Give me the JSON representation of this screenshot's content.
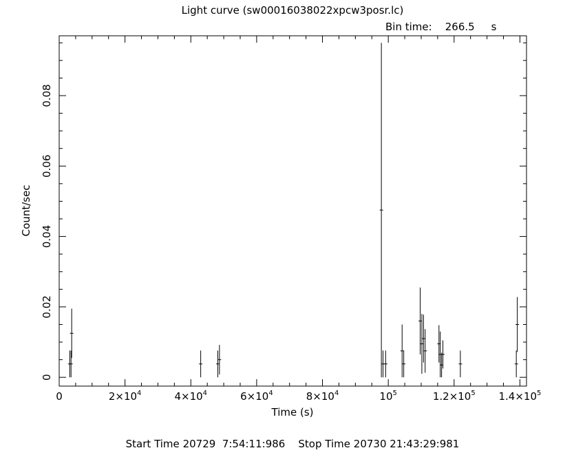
{
  "chart_data": {
    "type": "scatter",
    "title": "Light curve (sw00016038022xpcw3posr.lc)",
    "bin_time_label": "Bin time:",
    "bin_time_value": "266.5",
    "bin_time_unit": "s",
    "xlabel": "Time (s)",
    "ylabel": "Count/sec",
    "xlim": [
      0,
      142000
    ],
    "ylim": [
      -0.0025,
      0.097
    ],
    "x_ticks": [
      {
        "value": 0,
        "mant": "0",
        "exp": ""
      },
      {
        "value": 20000,
        "mant": "2×10",
        "exp": "4"
      },
      {
        "value": 40000,
        "mant": "4×10",
        "exp": "4"
      },
      {
        "value": 60000,
        "mant": "6×10",
        "exp": "4"
      },
      {
        "value": 80000,
        "mant": "8×10",
        "exp": "4"
      },
      {
        "value": 100000,
        "mant": "10",
        "exp": "5"
      },
      {
        "value": 120000,
        "mant": "1.2×10",
        "exp": "5"
      },
      {
        "value": 140000,
        "mant": "1.4×10",
        "exp": "5"
      }
    ],
    "y_ticks": [
      {
        "value": 0,
        "label": "0"
      },
      {
        "value": 0.02,
        "label": "0.02"
      },
      {
        "value": 0.04,
        "label": "0.04"
      },
      {
        "value": 0.06,
        "label": "0.06"
      },
      {
        "value": 0.08,
        "label": "0.08"
      }
    ],
    "points": [
      {
        "x": 3200,
        "y": 0.0038,
        "err": 0.0038
      },
      {
        "x": 3600,
        "y": 0.0038,
        "err": 0.0038
      },
      {
        "x": 3800,
        "y": 0.0125,
        "err": 0.007
      },
      {
        "x": 43000,
        "y": 0.0038,
        "err": 0.0038
      },
      {
        "x": 48200,
        "y": 0.0038,
        "err": 0.0038
      },
      {
        "x": 48700,
        "y": 0.005,
        "err": 0.0042
      },
      {
        "x": 97900,
        "y": 0.0475,
        "err": 0.0475
      },
      {
        "x": 98400,
        "y": 0.0038,
        "err": 0.0038
      },
      {
        "x": 99200,
        "y": 0.0038,
        "err": 0.0038
      },
      {
        "x": 104200,
        "y": 0.0075,
        "err": 0.0075
      },
      {
        "x": 104700,
        "y": 0.0038,
        "err": 0.0038
      },
      {
        "x": 109700,
        "y": 0.016,
        "err": 0.0095
      },
      {
        "x": 110200,
        "y": 0.0095,
        "err": 0.0085
      },
      {
        "x": 110700,
        "y": 0.011,
        "err": 0.0068
      },
      {
        "x": 111200,
        "y": 0.0075,
        "err": 0.0062
      },
      {
        "x": 115400,
        "y": 0.0095,
        "err": 0.0053
      },
      {
        "x": 115800,
        "y": 0.0065,
        "err": 0.0065
      },
      {
        "x": 116200,
        "y": 0.0035,
        "err": 0.0035
      },
      {
        "x": 116600,
        "y": 0.0065,
        "err": 0.004
      },
      {
        "x": 121900,
        "y": 0.0038,
        "err": 0.0038
      },
      {
        "x": 138900,
        "y": 0.0038,
        "err": 0.0038
      },
      {
        "x": 139200,
        "y": 0.015,
        "err": 0.0078
      }
    ]
  },
  "footer": {
    "start_label": "Start Time",
    "start_value": "20729  7:54:11:986",
    "stop_label": "Stop Time",
    "stop_value": "20730 21:43:29:981"
  }
}
